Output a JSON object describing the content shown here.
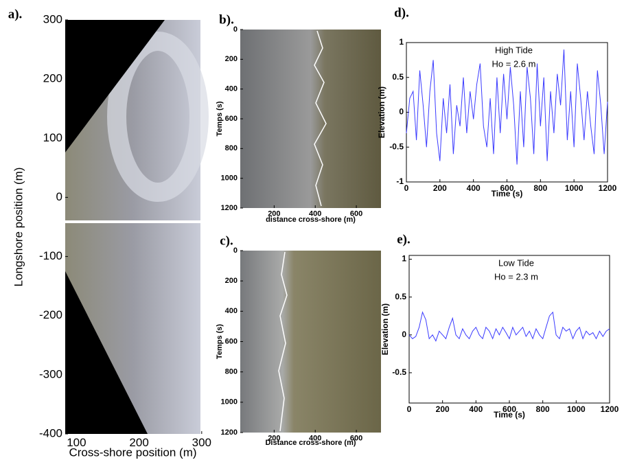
{
  "chart_data": [
    {
      "type": "image",
      "label": "a).",
      "xlabel": "Cross-shore position (m)",
      "ylabel": "Longshore position (m)",
      "xlim": [
        82,
        298
      ],
      "ylim": [
        -400,
        300
      ],
      "xticks": [
        100,
        200,
        300
      ],
      "yticks": [
        300,
        200,
        100,
        0,
        -100,
        -200,
        -300,
        -400
      ]
    },
    {
      "type": "image",
      "label": "b).",
      "xlabel": "distance cross-shore (m)",
      "ylabel": "Temps (s)",
      "xlim": [
        35,
        720
      ],
      "ylim": [
        0,
        1200
      ],
      "y_reversed": true,
      "xticks": [
        200,
        400,
        600
      ],
      "yticks": [
        0,
        200,
        400,
        600,
        800,
        1000,
        1200
      ]
    },
    {
      "type": "image",
      "label": "c).",
      "xlabel": "Distance cross-shore (m)",
      "ylabel": "Temps (s)",
      "xlim": [
        35,
        720
      ],
      "ylim": [
        0,
        1200
      ],
      "y_reversed": true,
      "xticks": [
        200,
        400,
        600
      ],
      "yticks": [
        0,
        200,
        400,
        600,
        800,
        1000,
        1200
      ]
    },
    {
      "type": "line",
      "label": "d).",
      "xlabel": "Time (s)",
      "ylabel": "Elevation (m)",
      "annotations": [
        "High Tide",
        "Ho = 2.6 m"
      ],
      "xlim": [
        0,
        1200
      ],
      "ylim": [
        -1,
        1
      ],
      "xticks": [
        0,
        200,
        400,
        600,
        800,
        1000,
        1200
      ],
      "yticks": [
        -1,
        -0.5,
        0,
        0.5,
        1
      ],
      "color": "#3a3aff",
      "x": [
        0,
        20,
        40,
        60,
        80,
        100,
        120,
        140,
        160,
        180,
        200,
        220,
        240,
        260,
        280,
        300,
        320,
        340,
        360,
        380,
        400,
        420,
        440,
        460,
        480,
        500,
        520,
        540,
        560,
        580,
        600,
        620,
        640,
        660,
        680,
        700,
        720,
        740,
        760,
        780,
        800,
        820,
        840,
        860,
        880,
        900,
        920,
        940,
        960,
        980,
        1000,
        1020,
        1040,
        1060,
        1080,
        1100,
        1120,
        1140,
        1160,
        1180,
        1200
      ],
      "values": [
        -0.3,
        0.2,
        0.3,
        -0.4,
        0.6,
        0.1,
        -0.5,
        0.3,
        0.75,
        -0.3,
        -0.7,
        0.2,
        -0.3,
        0.4,
        -0.6,
        0.1,
        -0.2,
        0.5,
        -0.3,
        0.3,
        -0.1,
        0.4,
        0.7,
        -0.2,
        -0.5,
        0.2,
        -0.6,
        0.5,
        -0.3,
        0.55,
        -0.1,
        0.65,
        0.1,
        -0.75,
        0.3,
        -0.5,
        0.65,
        0.2,
        -0.6,
        0.7,
        -0.2,
        0.5,
        -0.7,
        0.3,
        -0.3,
        0.55,
        0.1,
        0.9,
        -0.4,
        0.3,
        -0.5,
        0.7,
        0.2,
        -0.4,
        0.3,
        -0.2,
        -0.6,
        0.6,
        0.1,
        -0.6,
        0.15
      ]
    },
    {
      "type": "line",
      "label": "e).",
      "xlabel": "Time (s)",
      "ylabel": "Elevation (m)",
      "annotations": [
        "Low Tide",
        "Ho = 2.3 m"
      ],
      "xlim": [
        0,
        1200
      ],
      "ylim": [
        -0.9,
        1.05
      ],
      "xticks": [
        0,
        200,
        400,
        600,
        800,
        1000,
        1200
      ],
      "yticks": [
        -0.5,
        0,
        0.5,
        1
      ],
      "color": "#3a3aff",
      "x": [
        0,
        20,
        40,
        60,
        80,
        100,
        120,
        140,
        160,
        180,
        200,
        220,
        240,
        260,
        280,
        300,
        320,
        340,
        360,
        380,
        400,
        420,
        440,
        460,
        480,
        500,
        520,
        540,
        560,
        580,
        600,
        620,
        640,
        660,
        680,
        700,
        720,
        740,
        760,
        780,
        800,
        820,
        840,
        860,
        880,
        900,
        920,
        940,
        960,
        980,
        1000,
        1020,
        1040,
        1060,
        1080,
        1100,
        1120,
        1140,
        1160,
        1180,
        1200
      ],
      "values": [
        0,
        -0.05,
        -0.02,
        0.1,
        0.3,
        0.2,
        -0.05,
        0,
        -0.08,
        0.05,
        0,
        -0.05,
        0.1,
        0.22,
        0,
        -0.05,
        0.08,
        0,
        -0.05,
        0.05,
        0.1,
        0,
        -0.05,
        0.1,
        0.05,
        -0.05,
        0.08,
        0,
        0.1,
        0.03,
        -0.05,
        0.1,
        0,
        0.05,
        0.1,
        -0.02,
        0.05,
        -0.05,
        0.08,
        0,
        -0.05,
        0.1,
        0.25,
        0.3,
        0,
        -0.05,
        0.1,
        0.05,
        0.08,
        -0.05,
        0.05,
        0.1,
        -0.05,
        0.05,
        0,
        0.03,
        -0.05,
        0.05,
        -0.02,
        0.05,
        0.08
      ]
    }
  ]
}
